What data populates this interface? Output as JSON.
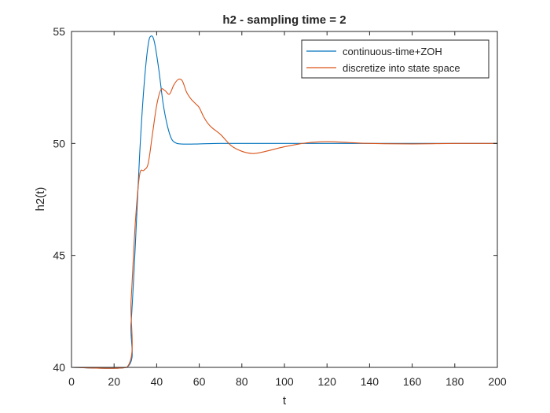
{
  "chart_data": {
    "type": "line",
    "title": "h2 - sampling time = 2",
    "xlabel": "t",
    "ylabel": "h2(t)",
    "xlim": [
      0,
      200
    ],
    "ylim": [
      40,
      55
    ],
    "xticks": [
      0,
      20,
      40,
      60,
      80,
      100,
      120,
      140,
      160,
      180,
      200
    ],
    "yticks": [
      40,
      45,
      50,
      55
    ],
    "grid": false,
    "legend_position": "top-right",
    "series": [
      {
        "name": "continuous-time+ZOH",
        "color": "#0072BD",
        "x": [
          0,
          26,
          28,
          30,
          32,
          34,
          36,
          37.5,
          39,
          41,
          43,
          45,
          47,
          49,
          51,
          55,
          60,
          70,
          80,
          100,
          120,
          140,
          160,
          180,
          200
        ],
        "y": [
          40,
          40,
          42,
          45.5,
          49.5,
          52.5,
          54.4,
          54.8,
          54.5,
          53.3,
          51.8,
          50.8,
          50.2,
          50.02,
          49.98,
          49.97,
          49.98,
          50,
          50,
          50,
          50,
          50,
          50,
          50,
          50
        ]
      },
      {
        "name": "discretize into state space",
        "color": "#D95319",
        "x": [
          0,
          26,
          28,
          30,
          32,
          34,
          36,
          38,
          40,
          42,
          44,
          46,
          48,
          50,
          52,
          54,
          56,
          58,
          60,
          62,
          64,
          66,
          70,
          75,
          80,
          85,
          90,
          100,
          110,
          120,
          130,
          140,
          160,
          180,
          200
        ],
        "y": [
          40,
          40,
          43,
          46.5,
          48.6,
          48.8,
          49.1,
          50.4,
          51.7,
          52.4,
          52.35,
          52.2,
          52.6,
          52.85,
          52.8,
          52.3,
          52.0,
          51.8,
          51.6,
          51.2,
          50.9,
          50.7,
          50.4,
          49.9,
          49.65,
          49.55,
          49.62,
          49.85,
          50.02,
          50.08,
          50.04,
          50.0,
          49.98,
          50,
          50
        ]
      }
    ]
  }
}
